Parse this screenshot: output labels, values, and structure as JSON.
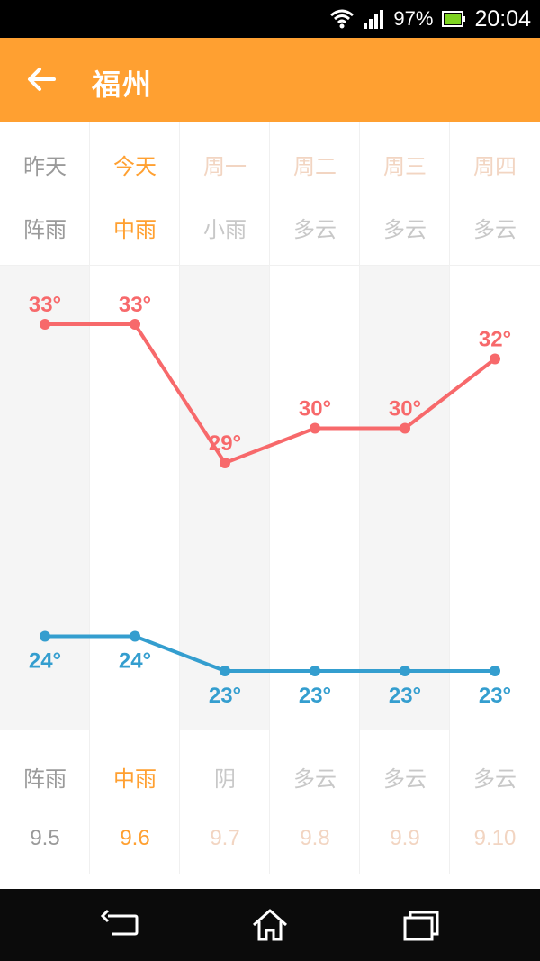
{
  "status": {
    "battery": "97%",
    "time": "20:04"
  },
  "header": {
    "title": "福州"
  },
  "days": [
    {
      "label": "昨天",
      "weather_top": "阵雨",
      "weather_bottom": "阵雨",
      "date": "9.5",
      "state": "past"
    },
    {
      "label": "今天",
      "weather_top": "中雨",
      "weather_bottom": "中雨",
      "date": "9.6",
      "state": "today"
    },
    {
      "label": "周一",
      "weather_top": "小雨",
      "weather_bottom": "阴",
      "date": "9.7",
      "state": "future"
    },
    {
      "label": "周二",
      "weather_top": "多云",
      "weather_bottom": "多云",
      "date": "9.8",
      "state": "future"
    },
    {
      "label": "周三",
      "weather_top": "多云",
      "weather_bottom": "多云",
      "date": "9.9",
      "state": "future"
    },
    {
      "label": "周四",
      "weather_top": "多云",
      "weather_bottom": "多云",
      "date": "9.10",
      "state": "future"
    }
  ],
  "colors": {
    "accent": "#FFA031",
    "high_line": "#F7696B",
    "low_line": "#349ECF",
    "past_text": "#9a9a9a",
    "today_text": "#FFA031",
    "future_text": "#F2D5C2",
    "shade": "#f5f5f5"
  },
  "chart_data": {
    "type": "line",
    "categories": [
      "昨天",
      "今天",
      "周一",
      "周二",
      "周三",
      "周四"
    ],
    "series": [
      {
        "values": [
          33,
          33,
          29,
          30,
          30,
          32
        ],
        "labels": [
          "33°",
          "33°",
          "29°",
          "30°",
          "30°",
          "32°"
        ]
      },
      {
        "values": [
          24,
          24,
          23,
          23,
          23,
          23
        ],
        "labels": [
          "24°",
          "24°",
          "23°",
          "23°",
          "23°",
          "23°"
        ]
      }
    ]
  },
  "nav": {
    "back": "back-icon",
    "home": "home-icon",
    "recents": "recents-icon"
  }
}
